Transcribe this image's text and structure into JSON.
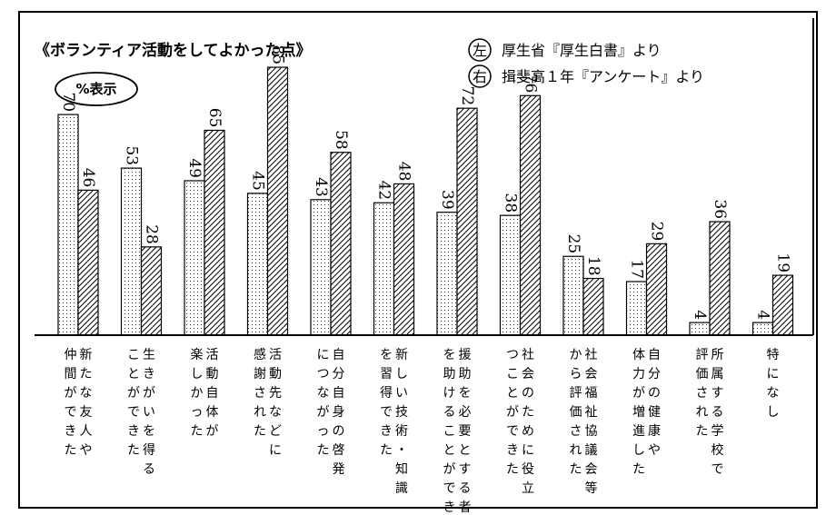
{
  "chart_data": {
    "type": "bar",
    "title": "《ボランティア活動をしてよかった点》",
    "badge": "%表示",
    "legend": [
      {
        "marker": "左",
        "text": "厚生省『厚生白書』より",
        "pattern": "dots"
      },
      {
        "marker": "右",
        "text": "揖斐高１年『アンケート』より",
        "pattern": "hatch"
      }
    ],
    "categories": [
      [
        "新たな友人や",
        "仲間ができた"
      ],
      [
        "生きがいを得る",
        "ことができた"
      ],
      [
        "活動自体が",
        "楽しかった"
      ],
      [
        "活動先などに",
        "感謝された"
      ],
      [
        "自分自身の啓発",
        "につながった"
      ],
      [
        "新しい技術・知識",
        "を習得できた"
      ],
      [
        "援助を必要とする者",
        "を助けることができた"
      ],
      [
        "社会のために役立",
        "つことができた"
      ],
      [
        "社会福祉協議会等",
        "から評価された"
      ],
      [
        "自分の健康や",
        "体力が増進した"
      ],
      [
        "所属する学校で",
        "評価された"
      ],
      [
        "特になし"
      ]
    ],
    "series": [
      {
        "values": [
          70,
          53,
          49,
          45,
          43,
          42,
          39,
          38,
          25,
          17,
          4,
          4
        ]
      },
      {
        "values": [
          46,
          28,
          65,
          85,
          58,
          48,
          72,
          76,
          18,
          29,
          36,
          19
        ]
      }
    ],
    "ylim": [
      0,
      90
    ]
  }
}
